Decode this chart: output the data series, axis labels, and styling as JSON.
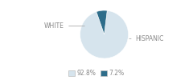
{
  "slices": [
    92.8,
    7.2
  ],
  "labels": [
    "WHITE",
    "HISPANIC"
  ],
  "colors": [
    "#d6e4ed",
    "#2e6d8a"
  ],
  "legend_labels": [
    "92.8%",
    "7.2%"
  ],
  "legend_colors": [
    "#d6e4ed",
    "#2e6d8a"
  ],
  "startangle": 83,
  "label_fontsize": 5.5,
  "legend_fontsize": 5.5,
  "label_color": "#888888"
}
